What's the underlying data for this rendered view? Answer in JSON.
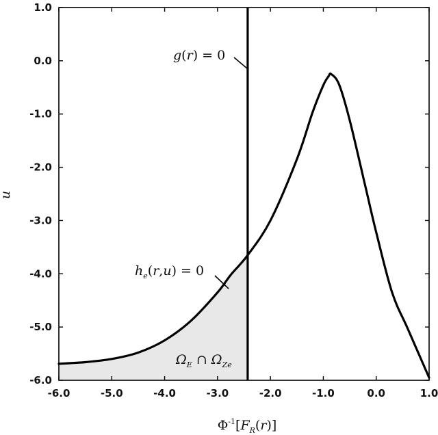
{
  "chart_data": {
    "type": "line",
    "title": "",
    "xlabel": "Φ⁻¹[F_R(r)]",
    "ylabel": "u",
    "xlim": [
      -6.0,
      1.0
    ],
    "ylim": [
      -6.0,
      1.0
    ],
    "x_ticks": [
      "-6.0",
      "-5.0",
      "-4.0",
      "-3.0",
      "-2.0",
      "-1.0",
      "0.0",
      "1.0"
    ],
    "y_ticks": [
      "1.0",
      "0.0",
      "-1.0",
      "-2.0",
      "-3.0",
      "-4.0",
      "-5.0",
      "-6.0"
    ],
    "grid": false,
    "series": [
      {
        "x": [
          -6.0,
          -5.5,
          -5.0,
          -4.5,
          -4.0,
          -3.5,
          -3.0,
          -2.75,
          -2.43,
          -2.0,
          -1.5,
          -1.2,
          -1.0,
          -0.9,
          -0.85,
          -0.7,
          -0.5,
          -0.2,
          0.0,
          0.3,
          0.6,
          1.0
        ],
        "y": [
          -5.69,
          -5.66,
          -5.6,
          -5.48,
          -5.25,
          -4.88,
          -4.35,
          -4.02,
          -3.65,
          -3.0,
          -1.85,
          -0.96,
          -0.46,
          -0.29,
          -0.25,
          -0.45,
          -1.12,
          -2.38,
          -3.22,
          -4.35,
          -5.04,
          -5.95
        ]
      },
      {
        "x": [
          -2.43,
          -2.43
        ],
        "y": [
          -6.0,
          1.0
        ]
      }
    ],
    "shaded_region": {
      "label": "Ω_E ∩ Ω_Ze",
      "x_from": -6.0,
      "x_to": -2.43
    },
    "annotations": [
      {
        "text": "g(r) = 0",
        "x": -2.43,
        "y": -0.1
      },
      {
        "text": "h_e(r,u) = 0",
        "x": -2.9,
        "y": -4.3
      }
    ],
    "colors": {
      "line": "#000000",
      "shade": "#e8e8e8"
    }
  }
}
